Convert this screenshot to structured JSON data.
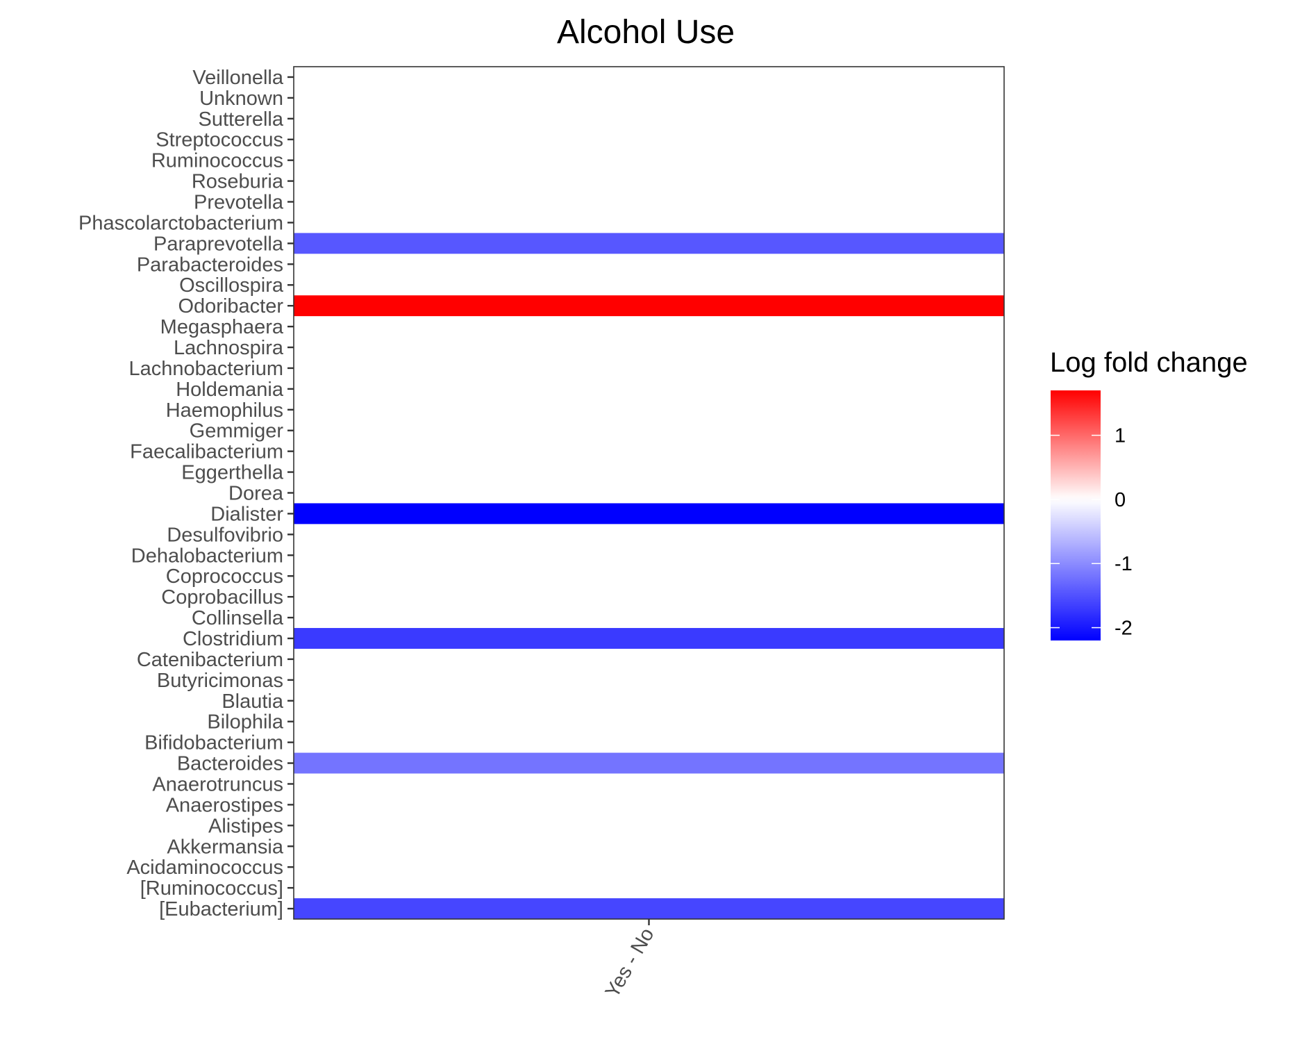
{
  "chart_data": {
    "type": "heatmap",
    "title": "Alcohol Use",
    "xlabel": "",
    "ylabel": "",
    "x_categories": [
      "Yes - No"
    ],
    "y_categories": [
      "Veillonella",
      "Unknown",
      "Sutterella",
      "Streptococcus",
      "Ruminococcus",
      "Roseburia",
      "Prevotella",
      "Phascolarctobacterium",
      "Paraprevotella",
      "Parabacteroides",
      "Oscillospira",
      "Odoribacter",
      "Megasphaera",
      "Lachnospira",
      "Lachnobacterium",
      "Holdemania",
      "Haemophilus",
      "Gemmiger",
      "Faecalibacterium",
      "Eggerthella",
      "Dorea",
      "Dialister",
      "Desulfovibrio",
      "Dehalobacterium",
      "Coprococcus",
      "Coprobacillus",
      "Collinsella",
      "Clostridium",
      "Catenibacterium",
      "Butyricimonas",
      "Blautia",
      "Bilophila",
      "Bifidobacterium",
      "Bacteroides",
      "Anaerotruncus",
      "Anaerostipes",
      "Alistipes",
      "Akkermansia",
      "Acidaminococcus",
      "[Ruminococcus]",
      "[Eubacterium]"
    ],
    "cells": [
      {
        "y": "Paraprevotella",
        "x": "Yes - No",
        "value": -1.45
      },
      {
        "y": "Odoribacter",
        "x": "Yes - No",
        "value": 1.7
      },
      {
        "y": "Dialister",
        "x": "Yes - No",
        "value": -2.2
      },
      {
        "y": "Clostridium",
        "x": "Yes - No",
        "value": -1.7
      },
      {
        "y": "Bacteroides",
        "x": "Yes - No",
        "value": -1.2
      },
      {
        "y": "[Eubacterium]",
        "x": "Yes - No",
        "value": -1.6
      }
    ],
    "legend": {
      "title": "Log fold change",
      "position": "right",
      "limits": [
        -2.2,
        1.7
      ],
      "ticks": [
        1,
        0,
        -1,
        -2
      ],
      "tick_labels": [
        "1",
        "0",
        "-1",
        "-2"
      ],
      "low_color": "#0000FF",
      "mid_color": "#FFFFFF",
      "high_color": "#FF0000"
    }
  }
}
